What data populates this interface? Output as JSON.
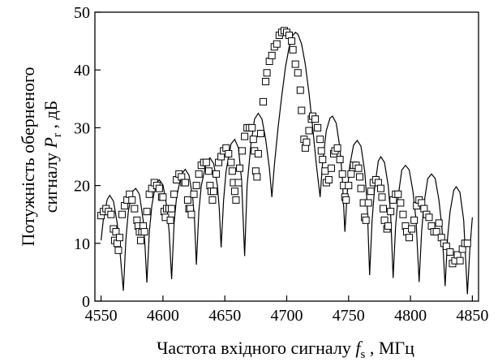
{
  "chart_data": {
    "type": "scatter",
    "xlabel": [
      "Частота вхідного сигналу ",
      "f",
      "s",
      " , МГц"
    ],
    "ylabel": [
      "Потужність оберненого",
      "сигналу ",
      "P",
      "r",
      " , дБ"
    ],
    "xlim": [
      4545,
      4855
    ],
    "ylim": [
      0,
      50
    ],
    "xticks": [
      4550,
      4600,
      4650,
      4700,
      4750,
      4800,
      4850
    ],
    "yticks": [
      0,
      10,
      20,
      30,
      40,
      50
    ],
    "series": [
      {
        "type": "line",
        "color": "#000000",
        "x": [
          4550,
          4552,
          4555,
          4557,
          4560,
          4563,
          4565.5,
          4568,
          4570,
          4572,
          4575,
          4578,
          4581,
          4584,
          4585.5,
          4587,
          4589,
          4591,
          4594,
          4597,
          4600,
          4603,
          4605,
          4607,
          4609,
          4611,
          4615,
          4618,
          4621,
          4624,
          4625.5,
          4627,
          4629,
          4631,
          4635,
          4638,
          4641,
          4644,
          4645.5,
          4647,
          4649,
          4651,
          4655,
          4658,
          4661,
          4663.5,
          4666,
          4668,
          4671,
          4674,
          4677,
          4680,
          4683,
          4686,
          4688,
          4690,
          4693,
          4696,
          4699,
          4702,
          4705,
          4707,
          4709,
          4712,
          4715,
          4718,
          4721,
          4724,
          4727,
          4729,
          4732,
          4735,
          4737,
          4740,
          4743,
          4745,
          4747,
          4749,
          4751,
          4754,
          4757,
          4760,
          4763,
          4765,
          4767,
          4769,
          4771,
          4774,
          4776,
          4779,
          4782,
          4784,
          4786,
          4788,
          4790,
          4793,
          4796,
          4799,
          4802,
          4804.5,
          4807,
          4809,
          4811,
          4814,
          4817,
          4820,
          4823,
          4825.5,
          4828,
          4830,
          4832,
          4835,
          4837,
          4840,
          4843,
          4846,
          4848,
          4850
        ],
        "values": [
          10.5,
          14.5,
          17.6,
          18.3,
          17.3,
          13.5,
          8,
          1.8,
          10.5,
          15.5,
          18.9,
          19.5,
          18.5,
          14,
          9.5,
          3.2,
          12,
          16.5,
          20.2,
          21,
          20.1,
          16.5,
          12,
          3.8,
          13.5,
          18,
          22,
          22.8,
          21.8,
          18,
          14,
          6.3,
          15.5,
          20,
          24,
          24.8,
          23.8,
          20,
          16,
          9.3,
          17.5,
          22.5,
          27.2,
          28,
          26.5,
          21,
          7.8,
          20,
          27,
          31.5,
          32.5,
          31.5,
          28,
          23,
          18,
          23.5,
          30,
          35.5,
          40.5,
          44,
          46,
          46.5,
          46.2,
          44.5,
          41,
          36,
          30,
          23.5,
          18,
          24,
          29.5,
          31.7,
          32,
          30.8,
          26.5,
          21,
          12,
          19,
          23.5,
          27,
          27.8,
          26.8,
          22.5,
          17,
          4.5,
          14,
          19.5,
          24.2,
          25,
          24,
          20,
          15,
          4,
          13,
          18,
          22.7,
          23.5,
          22.7,
          19,
          14,
          3.3,
          12,
          17,
          21.2,
          22,
          21.2,
          17.5,
          12.5,
          2.6,
          11,
          15.5,
          19.2,
          19.8,
          18.8,
          14,
          1.2,
          9,
          14.5
        ]
      },
      {
        "type": "scatter",
        "color": "#000000",
        "x": [
          4550,
          4552,
          4554,
          4556,
          4558,
          4560,
          4561,
          4562,
          4563,
          4564,
          4565,
          4567,
          4569,
          4571,
          4573,
          4575,
          4577,
          4579,
          4580,
          4581,
          4582,
          4583,
          4584,
          4585,
          4587,
          4589,
          4591,
          4593,
          4595,
          4597,
          4599,
          4600,
          4601,
          4602,
          4603,
          4605,
          4606,
          4607,
          4609,
          4611,
          4613,
          4615,
          4617,
          4618,
          4620,
          4621,
          4622,
          4623,
          4625,
          4627,
          4629,
          4631,
          4633,
          4635,
          4637,
          4638,
          4639,
          4640,
          4641,
          4643,
          4645,
          4647,
          4649,
          4651,
          4653,
          4655,
          4656,
          4657,
          4658,
          4659,
          4661,
          4662,
          4664,
          4666,
          4668,
          4670,
          4672,
          4673,
          4674,
          4675,
          4676,
          4677,
          4679,
          4681,
          4683,
          4684,
          4686,
          4688,
          4690,
          4692,
          4694,
          4696,
          4698,
          4700,
          4702,
          4704,
          4705,
          4707,
          4709,
          4711,
          4712,
          4714,
          4715,
          4716,
          4718,
          4720,
          4721,
          4723,
          4725,
          4727,
          4728,
          4729,
          4731,
          4732,
          4734,
          4736,
          4738,
          4739,
          4741,
          4743,
          4745,
          4746,
          4747,
          4748,
          4750,
          4752,
          4754,
          4756,
          4758,
          4759,
          4760,
          4762,
          4763,
          4764,
          4766,
          4768,
          4770,
          4772,
          4774,
          4776,
          4777,
          4778,
          4779,
          4781,
          4782,
          4784,
          4786,
          4788,
          4790,
          4792,
          4794,
          4796,
          4797,
          4799,
          4801,
          4803,
          4805,
          4807,
          4809,
          4811,
          4813,
          4815,
          4817,
          4819,
          4821,
          4823,
          4825,
          4827,
          4829,
          4832,
          4834,
          4836,
          4838,
          4840,
          4842,
          4844,
          4846
        ],
        "values": [
          14.8,
          15.5,
          16,
          15.5,
          15,
          12.5,
          10.5,
          12,
          10,
          8.8,
          11,
          15,
          16.5,
          17.5,
          18.5,
          17.5,
          16,
          14,
          13,
          12,
          10.5,
          12,
          13,
          12,
          15.5,
          18.5,
          19.5,
          20.5,
          20,
          19.5,
          18,
          18,
          15.5,
          14.5,
          16,
          16,
          14,
          16,
          18.5,
          21,
          22,
          21.5,
          20.5,
          20.5,
          17.5,
          16,
          16,
          15,
          18.5,
          20,
          22,
          23.5,
          24,
          24,
          22.5,
          20,
          19,
          17.5,
          19,
          22,
          24,
          25,
          26,
          26.5,
          25.5,
          24,
          22.5,
          20.5,
          19,
          17.5,
          20.5,
          23,
          26,
          28.5,
          30,
          30,
          30,
          28,
          26,
          22.5,
          21.5,
          25.5,
          29,
          34.5,
          38,
          39.5,
          41.5,
          42.5,
          44,
          44.5,
          46,
          46.5,
          46.8,
          46.5,
          46,
          45,
          43.5,
          41,
          39.5,
          36.5,
          33,
          28,
          26.5,
          27.5,
          29.5,
          31.5,
          32,
          31.5,
          30,
          28,
          26,
          24.5,
          22.5,
          20.5,
          21,
          23,
          25.5,
          26,
          26.5,
          24.5,
          22,
          20,
          18,
          17.5,
          20,
          22,
          23.5,
          23.5,
          23,
          21.5,
          19.5,
          17,
          14.5,
          14,
          17,
          19,
          20.5,
          21,
          20.5,
          19.5,
          18,
          16,
          14,
          12.5,
          13,
          15.5,
          17.5,
          18.5,
          18.5,
          17,
          15,
          13,
          12,
          11,
          12.5,
          14,
          16.5,
          17.5,
          17,
          16,
          15,
          14.5,
          13,
          12,
          12,
          13.5,
          11,
          10,
          9.5,
          8.5,
          6.5,
          7,
          8,
          7,
          9,
          10,
          10
        ]
      }
    ]
  }
}
